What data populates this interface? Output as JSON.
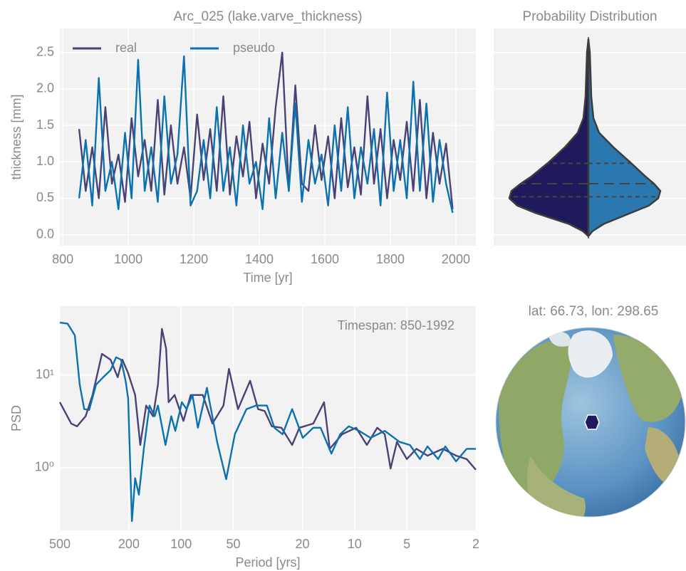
{
  "chart_data": [
    {
      "type": "line",
      "title": "Arc_025 (lake.varve_thickness)",
      "xlabel": "Time [yr]",
      "ylabel": "thickness [mm]",
      "x": [
        850,
        870,
        890,
        910,
        930,
        950,
        970,
        990,
        1010,
        1030,
        1050,
        1070,
        1090,
        1110,
        1130,
        1150,
        1170,
        1190,
        1210,
        1230,
        1250,
        1270,
        1290,
        1310,
        1330,
        1350,
        1370,
        1390,
        1410,
        1430,
        1450,
        1470,
        1490,
        1510,
        1530,
        1550,
        1570,
        1590,
        1610,
        1630,
        1650,
        1670,
        1690,
        1710,
        1730,
        1750,
        1770,
        1790,
        1810,
        1830,
        1850,
        1870,
        1890,
        1910,
        1930,
        1950,
        1970,
        1990
      ],
      "series": [
        {
          "name": "real",
          "color": "#4a4274",
          "values": [
            1.45,
            0.6,
            1.2,
            0.5,
            1.75,
            0.7,
            1.1,
            0.45,
            1.6,
            0.8,
            1.3,
            0.6,
            1.85,
            0.55,
            1.5,
            0.7,
            1.2,
            0.5,
            1.65,
            0.75,
            1.45,
            0.6,
            1.9,
            0.55,
            1.35,
            0.8,
            1.55,
            0.5,
            1.25,
            0.7,
            1.75,
            2.5,
            0.6,
            2.05,
            0.7,
            0.6,
            1.5,
            0.75,
            1.35,
            0.5,
            1.6,
            0.65,
            1.2,
            0.55,
            1.9,
            0.7,
            1.45,
            0.5,
            1.3,
            0.75,
            1.55,
            0.6,
            1.85,
            0.5,
            1.4,
            0.7,
            1.25,
            0.35
          ]
        },
        {
          "name": "pseudo",
          "color": "#0a72b0",
          "values": [
            0.5,
            1.3,
            0.4,
            2.15,
            0.6,
            1.0,
            0.35,
            1.4,
            0.5,
            2.4,
            0.6,
            1.2,
            0.45,
            1.9,
            0.7,
            1.1,
            2.45,
            0.4,
            0.6,
            1.3,
            0.5,
            1.75,
            0.6,
            1.2,
            0.4,
            1.5,
            0.7,
            1.0,
            0.35,
            1.6,
            0.5,
            1.4,
            0.6,
            1.8,
            0.45,
            1.3,
            0.7,
            1.1,
            0.4,
            1.5,
            0.6,
            1.75,
            0.5,
            1.2,
            0.7,
            1.45,
            0.4,
            1.95,
            0.6,
            1.3,
            0.5,
            2.1,
            0.6,
            1.8,
            0.45,
            1.3,
            0.7,
            0.3
          ]
        }
      ],
      "xlim": [
        791,
        2061
      ],
      "xticks": [
        800,
        1000,
        1200,
        1400,
        1600,
        1800,
        2000
      ],
      "ylim": [
        -0.15,
        2.83
      ],
      "yticks": [
        {
          "value": 0,
          "label": "0.0"
        },
        0.5,
        {
          "value": 1,
          "label": "1.0"
        },
        1.5,
        {
          "value": 2,
          "label": "2.0"
        },
        2.5
      ],
      "grid": true,
      "legend": "upper left"
    },
    {
      "type": "violin",
      "title": "Probability Distribution",
      "ylim": [
        -0.15,
        2.83
      ],
      "yticks": [
        0,
        0.5,
        1,
        1.5,
        2,
        2.5
      ],
      "grid": true,
      "series": [
        {
          "color": "#1f1a5c",
          "y": [
            -0.02,
            0.05,
            0.15,
            0.3,
            0.4,
            0.5,
            0.6,
            0.7,
            0.8,
            1.0,
            1.2,
            1.4,
            1.6,
            1.9,
            2.2,
            2.5,
            2.68
          ],
          "density": [
            0,
            0.08,
            0.28,
            0.75,
            1.0,
            1.11,
            1.08,
            0.95,
            0.8,
            0.55,
            0.33,
            0.15,
            0.07,
            0.04,
            0.03,
            0.02,
            0
          ],
          "quartiles": [
            0.52,
            0.7,
            0.98
          ]
        },
        {
          "color": "#2b78b0",
          "y": [
            -0.02,
            0.05,
            0.15,
            0.3,
            0.4,
            0.5,
            0.6,
            0.7,
            0.8,
            1.0,
            1.2,
            1.4,
            1.6,
            1.9,
            2.2,
            2.5,
            2.68
          ],
          "density": [
            0,
            0.06,
            0.22,
            0.6,
            0.85,
            0.98,
            1.01,
            0.92,
            0.8,
            0.58,
            0.35,
            0.15,
            0.07,
            0.04,
            0.03,
            0.02,
            0
          ],
          "quartiles": [
            0.52,
            0.7,
            0.98
          ]
        }
      ]
    },
    {
      "type": "line",
      "xlabel": "Period [yrs]",
      "ylabel": "PSD",
      "annotation": "Timespan: 850-1992",
      "xscale": "log",
      "yscale": "log",
      "xlim": [
        500,
        2
      ],
      "xticks": [
        500,
        200,
        100,
        50,
        20,
        10,
        5,
        2
      ],
      "ylim": [
        0.21,
        55.7
      ],
      "yticks": [
        {
          "value": 1,
          "label": "10⁰"
        },
        {
          "value": 10,
          "label": "10¹"
        }
      ],
      "grid": true,
      "series": [
        {
          "color": "#4a4274",
          "x": [
            500,
            430,
            398,
            355,
            324,
            286,
            255,
            232,
            218,
            202,
            184,
            172,
            159,
            145,
            136,
            129,
            122,
            118,
            109,
            97,
            88,
            75,
            66,
            57,
            53,
            47,
            40,
            36,
            33,
            30,
            26.4,
            22.9,
            20.8,
            17.3,
            15.0,
            13.9,
            11.8,
            9.8,
            8.5,
            7.4,
            6.7,
            6.2,
            5.7,
            5.0,
            4.4,
            3.8,
            3.1,
            2.6,
            2.26,
            2.0
          ],
          "values": [
            5.1,
            3.0,
            2.8,
            3.6,
            6.1,
            17,
            14.7,
            9.5,
            14.7,
            10.5,
            6.1,
            1.76,
            4.7,
            3.6,
            7.9,
            31.6,
            19.3,
            5.1,
            6.1,
            3.2,
            6.1,
            6.1,
            3.0,
            4.7,
            11.7,
            4.3,
            8.7,
            4.3,
            4.1,
            2.8,
            2.7,
            1.76,
            2.7,
            3.0,
            5.1,
            1.6,
            2.3,
            2.7,
            1.76,
            2.7,
            2.3,
            0.98,
            1.9,
            1.24,
            1.6,
            1.35,
            1.6,
            1.35,
            1.24,
            0.95
          ]
        },
        {
          "color": "#0a72b0",
          "x": [
            500,
            451,
            410,
            384,
            362,
            339,
            309,
            281,
            255,
            237,
            222,
            209,
            202,
            192,
            184,
            175,
            164,
            152,
            142,
            136,
            123,
            114,
            108,
            99,
            93,
            86,
            80,
            71,
            62,
            55,
            49,
            42,
            37,
            32,
            29,
            26,
            22.9,
            19.9,
            17.3,
            15.7,
            13.6,
            12.1,
            10.8,
            9.4,
            8.1,
            6.7,
            5.5,
            4.8,
            4.2,
            3.8,
            3.3,
            3.0,
            2.6,
            2.26,
            2.0
          ],
          "values": [
            37,
            36,
            27,
            7.9,
            4.3,
            4.2,
            7.9,
            9.5,
            11.3,
            15.6,
            14.7,
            8.7,
            5.6,
            0.265,
            0.77,
            0.51,
            1.6,
            4.7,
            3.6,
            4.7,
            1.76,
            3.6,
            2.5,
            5.1,
            4.3,
            6.1,
            2.7,
            7.3,
            1.9,
            0.75,
            2.3,
            4.3,
            4.7,
            4.7,
            2.7,
            2.3,
            4.3,
            2.1,
            2.7,
            2.7,
            1.42,
            2.3,
            2.8,
            2.5,
            2.1,
            2.5,
            1.9,
            1.76,
            1.24,
            1.7,
            1.24,
            1.7,
            1.17,
            1.6,
            1.6
          ]
        }
      ]
    }
  ],
  "map": {
    "title": "lat: 66.73, lon: 298.65"
  }
}
